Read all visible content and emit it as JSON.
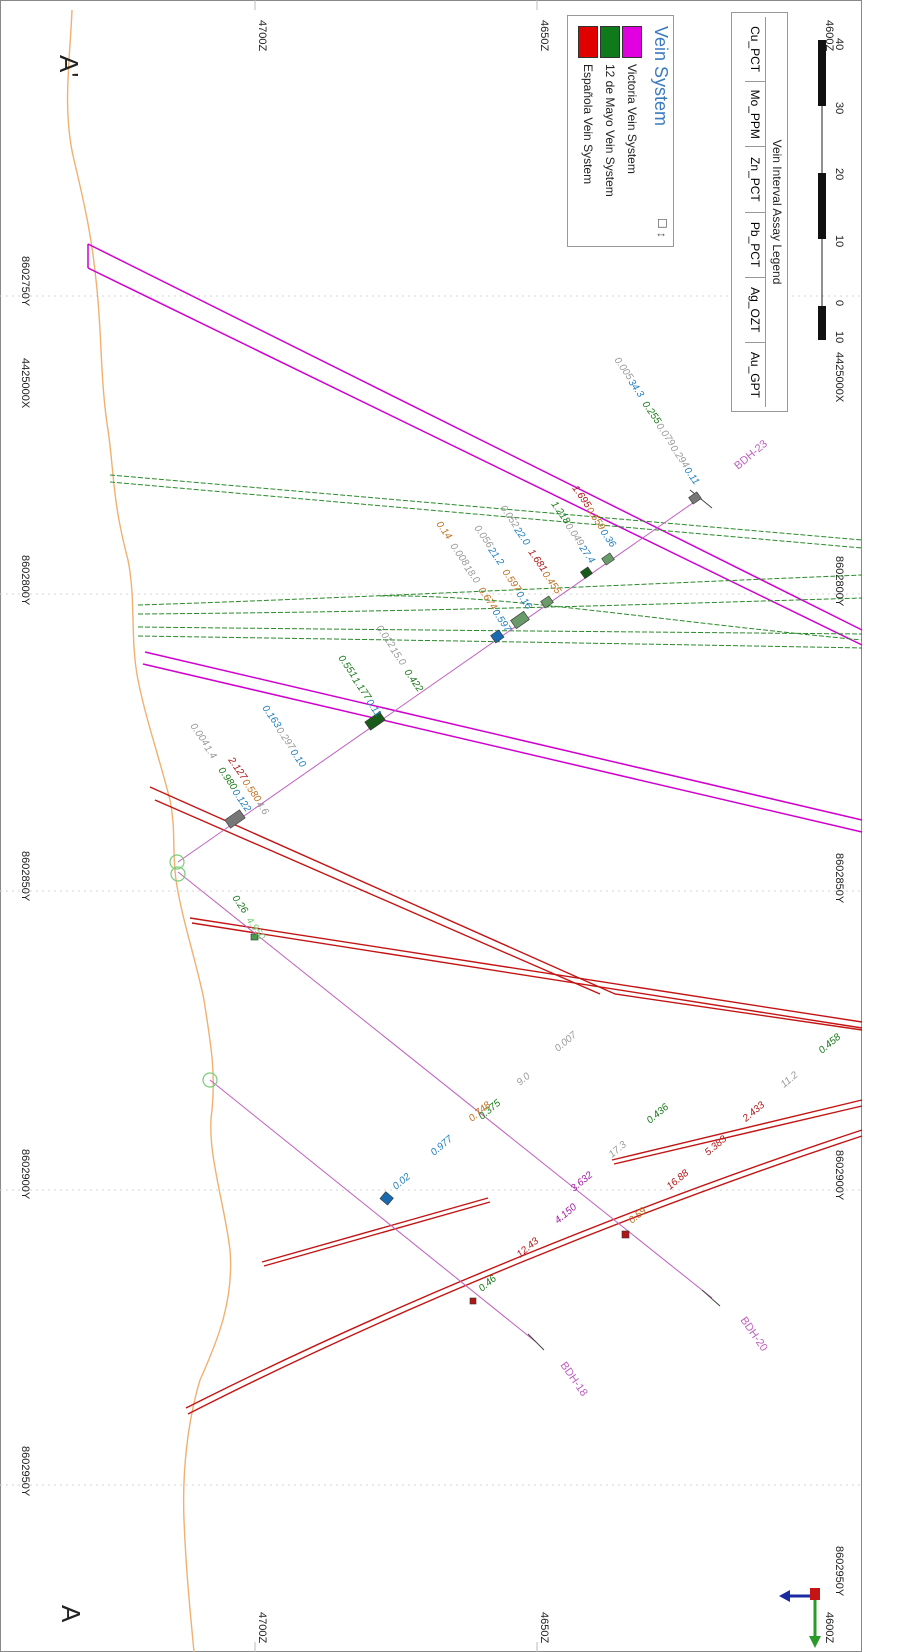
{
  "section": {
    "label_left": "A",
    "label_right": "A'"
  },
  "elevation_labels": [
    "4700Z",
    "4650Z",
    "4600Z"
  ],
  "northing_labels": [
    "8602750Y",
    "8602800Y",
    "8602850Y",
    "8602900Y",
    "8602950Y"
  ],
  "easting_labels": [
    "4425000X",
    "4425000X"
  ],
  "vein_legend": {
    "title": "Vein System",
    "items": [
      {
        "label": "Victoria Vein System",
        "color": "#e000e0"
      },
      {
        "label": "12 de Mayo Vein System",
        "color": "#0f7a1a"
      },
      {
        "label": "Española Vein System",
        "color": "#e00000"
      }
    ]
  },
  "assay_legend": {
    "title": "Vein Interval Assay Legend",
    "columns": [
      "Au_GPT",
      "Ag_OZT",
      "Pb_PCT",
      "Zn_PCT",
      "Mo_PPM",
      "Cu_PCT"
    ]
  },
  "scale_bar": {
    "ticks": [
      "10",
      "0",
      "10",
      "20",
      "30",
      "40"
    ]
  },
  "drillholes": [
    "BDH-23",
    "BDH-20",
    "BDH-18"
  ],
  "assays_bdh23": [
    {
      "text": "0.11",
      "color": "#1f7fbf"
    },
    {
      "text": "0.294",
      "color": "#9a9a9a"
    },
    {
      "text": "0.079",
      "color": "#9a9a9a"
    },
    {
      "text": "0.255",
      "color": "#1a7a1a"
    },
    {
      "text": "34.3",
      "color": "#1f7fbf"
    },
    {
      "text": "0.005",
      "color": "#9a9a9a"
    },
    {
      "text": "0.36",
      "color": "#1f7fbf"
    },
    {
      "text": "0.659",
      "color": "#c07020"
    },
    {
      "text": "1.695",
      "color": "#b01818"
    },
    {
      "text": "27.4",
      "color": "#1f7fbf"
    },
    {
      "text": "0.049",
      "color": "#9a9a9a"
    },
    {
      "text": "1.218",
      "color": "#1a7a1a"
    },
    {
      "text": "0.455",
      "color": "#c07020"
    },
    {
      "text": "1.681",
      "color": "#b01818"
    },
    {
      "text": "22.0",
      "color": "#1f7fbf"
    },
    {
      "text": "0.052",
      "color": "#9a9a9a"
    },
    {
      "text": "0.16",
      "color": "#1f7fbf"
    },
    {
      "text": "0.597",
      "color": "#c07020"
    },
    {
      "text": "21.2",
      "color": "#1f7fbf"
    },
    {
      "text": "0.056",
      "color": "#9a9a9a"
    },
    {
      "text": "0.597",
      "color": "#1f7fbf"
    },
    {
      "text": "0.674",
      "color": "#c07020"
    },
    {
      "text": "18.0",
      "color": "#9a9a9a"
    },
    {
      "text": "0.008",
      "color": "#9a9a9a"
    },
    {
      "text": "0.14",
      "color": "#c07020"
    },
    {
      "text": "0.422",
      "color": "#1a7a1a"
    },
    {
      "text": "15.0",
      "color": "#9a9a9a"
    },
    {
      "text": "0.012",
      "color": "#9a9a9a"
    },
    {
      "text": "0.11",
      "color": "#1f7fbf"
    },
    {
      "text": "1.177",
      "color": "#1a7a1a"
    },
    {
      "text": "0.551",
      "color": "#1a7a1a"
    },
    {
      "text": "0.122",
      "color": "#1f7fbf"
    },
    {
      "text": "0.980",
      "color": "#1a7a1a"
    },
    {
      "text": "1.4",
      "color": "#9a9a9a"
    },
    {
      "text": "0.004",
      "color": "#9a9a9a"
    },
    {
      "text": "0.10",
      "color": "#1f7fbf"
    },
    {
      "text": "0.297",
      "color": "#9a9a9a"
    },
    {
      "text": "0.163",
      "color": "#1f7fbf"
    },
    {
      "text": "4.6",
      "color": "#9a9a9a"
    },
    {
      "text": "0.580",
      "color": "#c07020"
    },
    {
      "text": "2.127",
      "color": "#b01818"
    },
    {
      "text": "4.950",
      "color": "#7acc7a"
    },
    {
      "text": "0.26",
      "color": "#1a7a1a"
    }
  ],
  "assays_bdh20": [
    {
      "text": "0.59",
      "color": "#c07020"
    },
    {
      "text": "16.88",
      "color": "#b01818"
    },
    {
      "text": "5.383",
      "color": "#b01818"
    },
    {
      "text": "2.433",
      "color": "#b01818"
    },
    {
      "text": "11.2",
      "color": "#9a9a9a"
    },
    {
      "text": "0.458",
      "color": "#1a7a1a"
    },
    {
      "text": "3.632",
      "color": "#a020a0"
    },
    {
      "text": "17.3",
      "color": "#9a9a9a"
    },
    {
      "text": "0.436",
      "color": "#1a7a1a"
    },
    {
      "text": "0.375",
      "color": "#1a7a1a"
    },
    {
      "text": "9.0",
      "color": "#9a9a9a"
    },
    {
      "text": "0.007",
      "color": "#9a9a9a"
    }
  ],
  "assays_bdh18": [
    {
      "text": "0.46",
      "color": "#1a7a1a"
    },
    {
      "text": "12.43",
      "color": "#b01818"
    },
    {
      "text": "4.150",
      "color": "#a020a0"
    },
    {
      "text": "0.02",
      "color": "#1f7fbf"
    },
    {
      "text": "0.977",
      "color": "#1f7fbf"
    },
    {
      "text": "0.748",
      "color": "#c07020"
    }
  ]
}
